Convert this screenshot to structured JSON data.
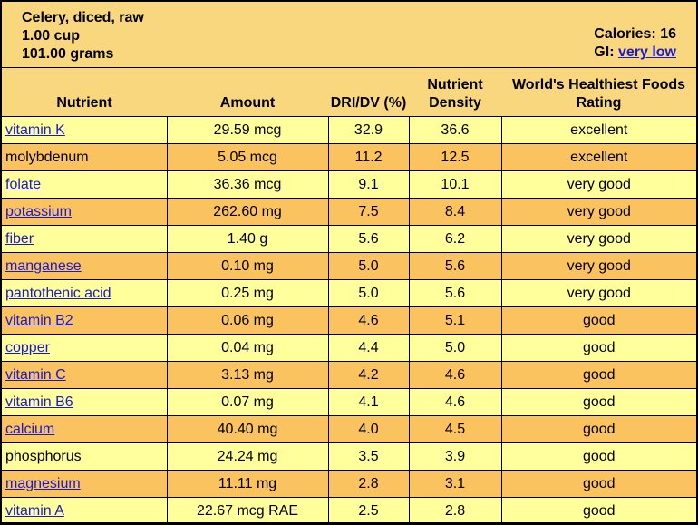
{
  "food": {
    "name": "Celery, diced, raw",
    "serving": "1.00 cup",
    "weight": "101.00 grams",
    "calories": "Calories: 16",
    "gi_label": "GI:",
    "gi_value": "very low"
  },
  "columns": [
    "Nutrient",
    "Amount",
    "DRI/DV (%)",
    "Nutrient Density",
    "World's Healthiest Foods Rating"
  ],
  "colors": {
    "header": "#f9d77e",
    "row_light": "#ffff9c",
    "row_dark": "#fbc260",
    "link": "#1a1acc"
  },
  "rows": [
    {
      "nutrient": "vitamin K",
      "link": true,
      "amount": "29.59 mcg",
      "dri": "32.9",
      "density": "36.6",
      "rating": "excellent"
    },
    {
      "nutrient": "molybdenum",
      "link": false,
      "amount": "5.05 mcg",
      "dri": "11.2",
      "density": "12.5",
      "rating": "excellent"
    },
    {
      "nutrient": "folate",
      "link": true,
      "amount": "36.36 mcg",
      "dri": "9.1",
      "density": "10.1",
      "rating": "very good"
    },
    {
      "nutrient": "potassium",
      "link": true,
      "amount": "262.60 mg",
      "dri": "7.5",
      "density": "8.4",
      "rating": "very good"
    },
    {
      "nutrient": "fiber",
      "link": true,
      "amount": "1.40 g",
      "dri": "5.6",
      "density": "6.2",
      "rating": "very good"
    },
    {
      "nutrient": "manganese",
      "link": true,
      "amount": "0.10 mg",
      "dri": "5.0",
      "density": "5.6",
      "rating": "very good"
    },
    {
      "nutrient": "pantothenic acid",
      "link": true,
      "amount": "0.25 mg",
      "dri": "5.0",
      "density": "5.6",
      "rating": "very good"
    },
    {
      "nutrient": "vitamin B2",
      "link": true,
      "amount": "0.06 mg",
      "dri": "4.6",
      "density": "5.1",
      "rating": "good"
    },
    {
      "nutrient": "copper",
      "link": true,
      "amount": "0.04 mg",
      "dri": "4.4",
      "density": "5.0",
      "rating": "good"
    },
    {
      "nutrient": "vitamin C",
      "link": true,
      "amount": "3.13 mg",
      "dri": "4.2",
      "density": "4.6",
      "rating": "good"
    },
    {
      "nutrient": "vitamin B6",
      "link": true,
      "amount": "0.07 mg",
      "dri": "4.1",
      "density": "4.6",
      "rating": "good"
    },
    {
      "nutrient": "calcium",
      "link": true,
      "amount": "40.40 mg",
      "dri": "4.0",
      "density": "4.5",
      "rating": "good"
    },
    {
      "nutrient": "phosphorus",
      "link": false,
      "amount": "24.24 mg",
      "dri": "3.5",
      "density": "3.9",
      "rating": "good"
    },
    {
      "nutrient": "magnesium",
      "link": true,
      "amount": "11.11 mg",
      "dri": "2.8",
      "density": "3.1",
      "rating": "good"
    },
    {
      "nutrient": "vitamin A",
      "link": true,
      "amount": "22.67 mcg RAE",
      "dri": "2.5",
      "density": "2.8",
      "rating": "good"
    }
  ]
}
